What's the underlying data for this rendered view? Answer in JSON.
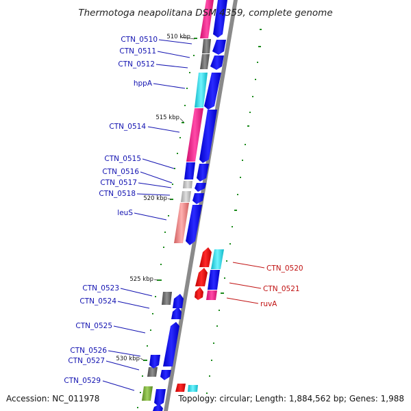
{
  "title": "Thermotoga neapolitana DSM 4359, complete genome",
  "footer": {
    "accession": "Accession: NC_011978",
    "topology": "Topology: circular; Length: 1,884,562 bp; Genes: 1,988"
  },
  "scale_labels": [
    "510 kbp",
    "515 kbp",
    "520 kbp",
    "525 kbp",
    "530 kbp"
  ],
  "gene_labels_left": [
    "CTN_0510",
    "CTN_0511",
    "CTN_0512",
    "hppA",
    "CTN_0514",
    "CTN_0515",
    "CTN_0516",
    "CTN_0517",
    "CTN_0518",
    "leuS",
    "CTN_0523",
    "CTN_0524",
    "CTN_0525",
    "CTN_0526",
    "CTN_0527",
    "CTN_0529"
  ],
  "gene_labels_right": [
    "CTN_0520",
    "CTN_0521",
    "ruvA"
  ],
  "colors": {
    "forward_arrow": "#0000ee",
    "reverse_arrow": "#ee0000",
    "backbone": "#8a8a8a",
    "left_label": "#1010b0",
    "right_label": "#c01010",
    "tick": "#1a8a1a",
    "magenta": "#f0208a",
    "cyan": "#20e0e8",
    "gray": "#707070",
    "pink": "#e88080"
  }
}
